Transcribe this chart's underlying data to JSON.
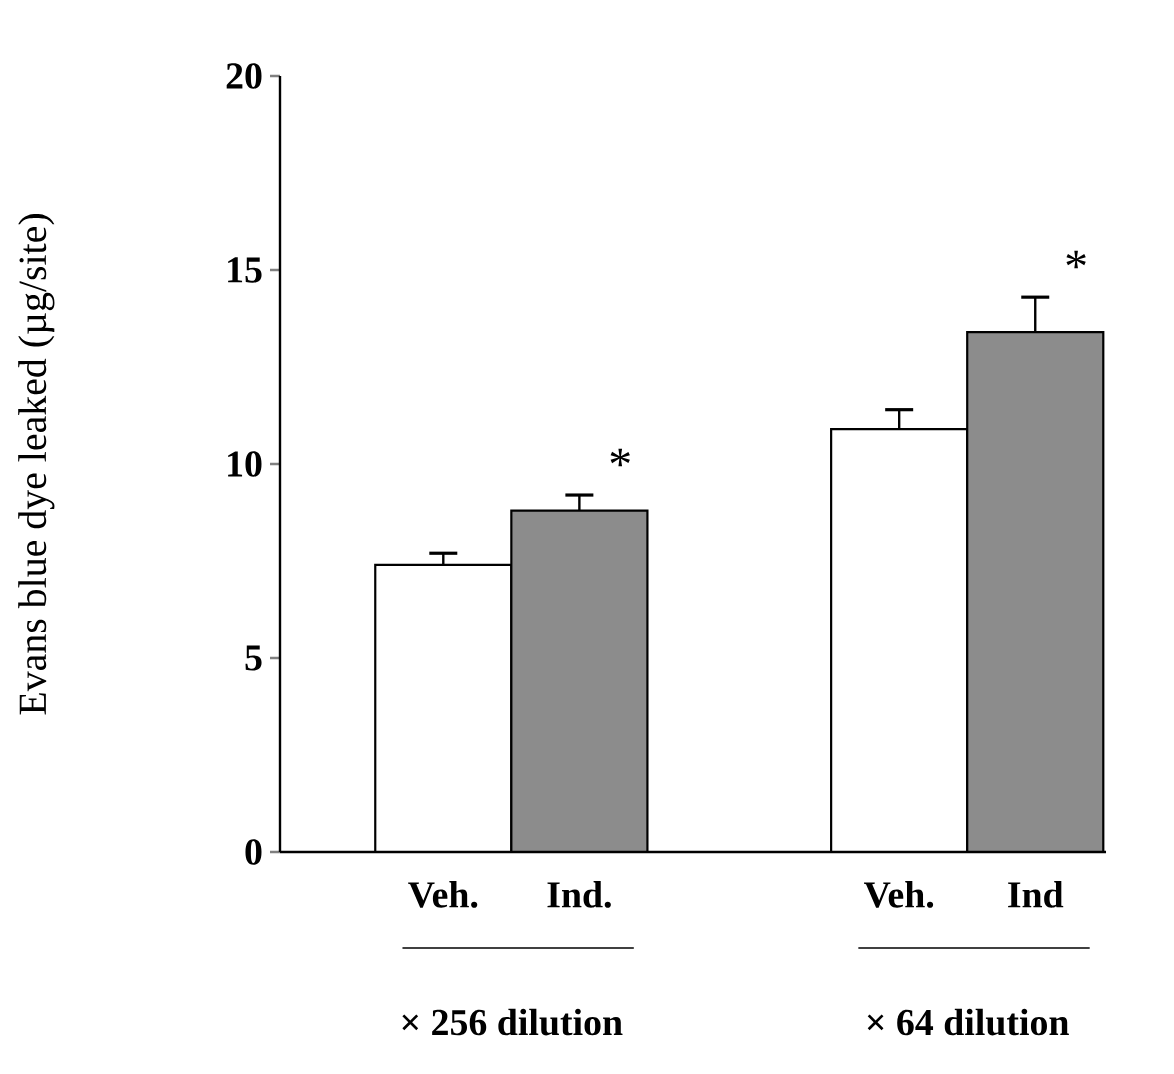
{
  "chart_data": {
    "type": "bar",
    "ylabel": "Evans blue dye leaked (µg/site)",
    "categories": [
      "Veh.",
      "Ind.",
      "Veh.",
      "Ind"
    ],
    "values": [
      7.4,
      8.8,
      10.9,
      13.4
    ],
    "errors": [
      0.3,
      0.4,
      0.5,
      0.9
    ],
    "colors": [
      "#ffffff",
      "#8c8c8c",
      "#ffffff",
      "#8c8c8c"
    ],
    "ylim": [
      0,
      20
    ],
    "yticks": [
      0,
      5,
      10,
      15,
      20
    ],
    "annotations": [
      "*",
      "*",
      "× 256 dilution",
      "× 64 dilution"
    ]
  }
}
